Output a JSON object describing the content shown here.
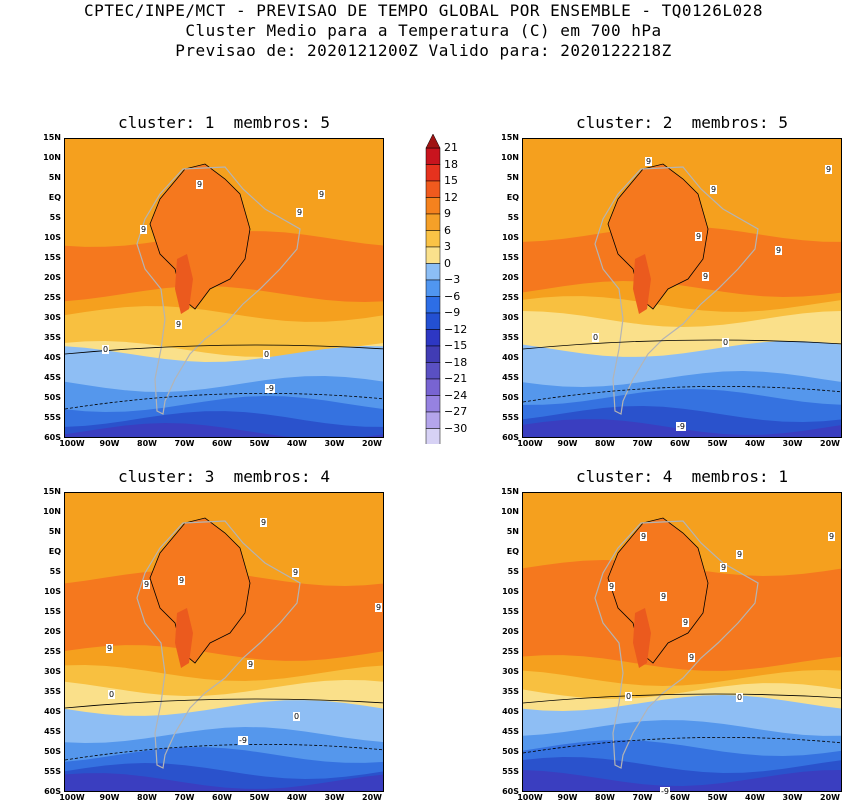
{
  "header": {
    "line1": "CPTEC/INPE/MCT - PREVISAO DE TEMPO GLOBAL POR ENSEMBLE - TQ0126L028",
    "line2": "Cluster Medio para a Temperatura (C) em 700 hPa",
    "line3": "Previsao de: 2020121200Z   Valido para: 2020122218Z"
  },
  "panels": [
    {
      "title": "cluster: 1  membros: 5"
    },
    {
      "title": "cluster: 2  membros: 5"
    },
    {
      "title": "cluster: 3  membros: 4"
    },
    {
      "title": "cluster: 4  membros: 1"
    }
  ],
  "lat_labels": [
    "15N",
    "10N",
    "5N",
    "EQ",
    "5S",
    "10S",
    "15S",
    "20S",
    "25S",
    "30S",
    "35S",
    "40S",
    "45S",
    "50S",
    "55S",
    "60S"
  ],
  "lon_labels": [
    "100W",
    "90W",
    "80W",
    "70W",
    "60W",
    "50W",
    "40W",
    "30W",
    "20W"
  ],
  "colorbar": {
    "labels": [
      "21",
      "18",
      "15",
      "12",
      "9",
      "6",
      "3",
      "0",
      "-3",
      "-6",
      "-9",
      "-12",
      "-15",
      "-18",
      "-21",
      "-24",
      "-27",
      "-30"
    ],
    "colors": [
      "#c8141e",
      "#e6321e",
      "#f05a1e",
      "#f5821e",
      "#f5a028",
      "#fac346",
      "#fae18c",
      "#8cbef5",
      "#5096f0",
      "#2d6ee6",
      "#2350d2",
      "#2d37c3",
      "#413cb4",
      "#5a50c3",
      "#7864d2",
      "#9682e1",
      "#b4a5eb",
      "#d7d2f5"
    ]
  },
  "contour_labels": [
    "9",
    "0",
    "-9"
  ],
  "palette": {
    "t6_9": "#f5a01e",
    "t9_12": "#f5781e",
    "t12_15": "#eb5a1e",
    "t3_6": "#f8c040",
    "t0_3": "#fae08a",
    "tm3_0": "#8ebef4",
    "tm6_m3": "#5597ec",
    "tm9_m6": "#3572e0",
    "tm12_m9": "#2a52cc",
    "tm15_m12": "#3a3ec0",
    "tm18_m15": "#5a4ec8",
    "coast": "#b4b4b4"
  }
}
